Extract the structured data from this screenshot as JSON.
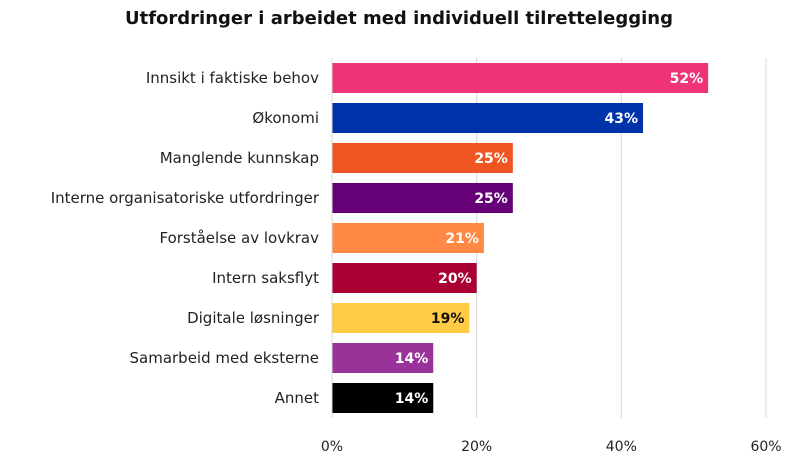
{
  "chart_data": {
    "type": "bar",
    "orientation": "horizontal",
    "title": "Utfordringer i arbeidet med individuell tilrettelegging",
    "xlabel": "",
    "ylabel": "",
    "xlim": [
      0,
      60
    ],
    "x_ticks": [
      0,
      20,
      40,
      60
    ],
    "x_tick_labels": [
      "0%",
      "20%",
      "40%",
      "60%"
    ],
    "grid": "vertical",
    "legend": "none",
    "categories": [
      "Innsikt i faktiske behov",
      "Økonomi",
      "Manglende kunnskap",
      "Interne organisatoriske utfordringer",
      "Forståelse av lovkrav",
      "Intern saksflyt",
      "Digitale løsninger",
      "Samarbeid med eksterne",
      "Annet"
    ],
    "values": [
      52,
      43,
      25,
      25,
      21,
      20,
      19,
      14,
      14
    ],
    "data_labels": [
      "52%",
      "43%",
      "25%",
      "25%",
      "21%",
      "20%",
      "19%",
      "14%",
      "14%"
    ],
    "colors": [
      "#ee3377",
      "#0033aa",
      "#ee5522",
      "#660077",
      "#ff8844",
      "#aa0033",
      "#ffcc44",
      "#993399",
      "#000000"
    ],
    "label_colors": [
      "#ffffff",
      "#ffffff",
      "#ffffff",
      "#ffffff",
      "#ffffff",
      "#ffffff",
      "#111111",
      "#ffffff",
      "#ffffff"
    ]
  }
}
